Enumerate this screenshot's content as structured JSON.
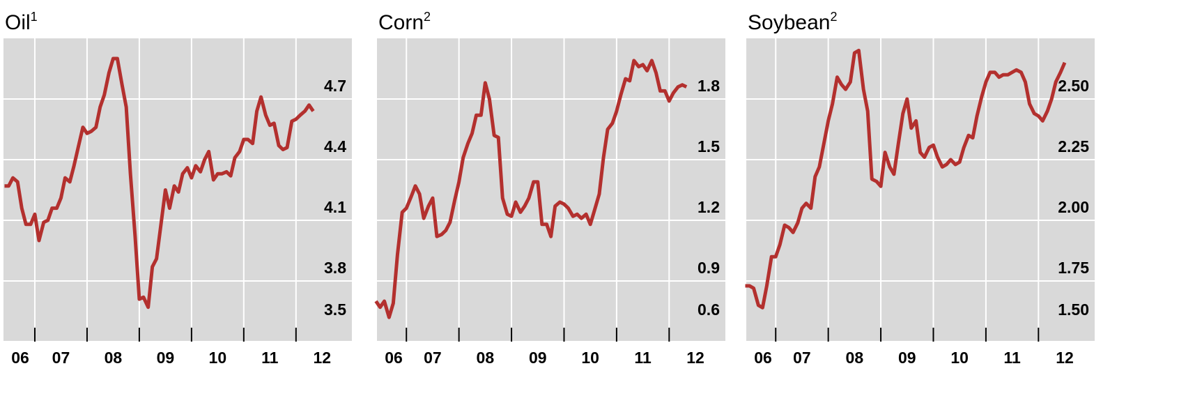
{
  "chart_data": [
    {
      "type": "line",
      "title": "Oil",
      "title_note": "1",
      "color": "#b3302e",
      "xlim": [
        2006.4,
        2013.07
      ],
      "ylim": [
        3.5,
        5.0
      ],
      "xticks": [
        {
          "value": 2006.5,
          "label": "06"
        },
        {
          "value": 2007.5,
          "label": "07"
        },
        {
          "value": 2008.5,
          "label": "08"
        },
        {
          "value": 2009.5,
          "label": "09"
        },
        {
          "value": 2010.5,
          "label": "10"
        },
        {
          "value": 2011.5,
          "label": "11"
        },
        {
          "value": 2012.5,
          "label": "12"
        }
      ],
      "yticks": [
        3.5,
        3.8,
        4.1,
        4.4,
        4.7
      ],
      "grid": true,
      "x": [
        2006.42,
        2006.5,
        2006.58,
        2006.67,
        2006.75,
        2006.83,
        2006.92,
        2007,
        2007.08,
        2007.17,
        2007.25,
        2007.33,
        2007.42,
        2007.5,
        2007.58,
        2007.67,
        2007.75,
        2007.83,
        2007.92,
        2008,
        2008.08,
        2008.17,
        2008.25,
        2008.33,
        2008.42,
        2008.5,
        2008.58,
        2008.67,
        2008.75,
        2008.83,
        2008.92,
        2009,
        2009.08,
        2009.17,
        2009.25,
        2009.33,
        2009.42,
        2009.5,
        2009.58,
        2009.67,
        2009.75,
        2009.83,
        2009.92,
        2010,
        2010.08,
        2010.17,
        2010.25,
        2010.33,
        2010.42,
        2010.5,
        2010.58,
        2010.67,
        2010.75,
        2010.83,
        2010.92,
        2011,
        2011.08,
        2011.17,
        2011.25,
        2011.33,
        2011.42,
        2011.5,
        2011.58,
        2011.67,
        2011.75,
        2011.83,
        2011.92,
        2012,
        2012.08,
        2012.17,
        2012.25,
        2012.33
      ],
      "values": [
        4.27,
        4.27,
        4.31,
        4.29,
        4.16,
        4.08,
        4.08,
        4.13,
        4.0,
        4.09,
        4.1,
        4.16,
        4.16,
        4.21,
        4.31,
        4.29,
        4.37,
        4.46,
        4.56,
        4.53,
        4.54,
        4.56,
        4.66,
        4.72,
        4.83,
        4.9,
        4.9,
        4.77,
        4.66,
        4.33,
        4.02,
        3.71,
        3.72,
        3.67,
        3.87,
        3.91,
        4.09,
        4.25,
        4.16,
        4.27,
        4.24,
        4.33,
        4.36,
        4.31,
        4.37,
        4.34,
        4.4,
        4.44,
        4.3,
        4.33,
        4.33,
        4.34,
        4.32,
        4.41,
        4.44,
        4.5,
        4.5,
        4.48,
        4.64,
        4.71,
        4.62,
        4.57,
        4.58,
        4.47,
        4.45,
        4.46,
        4.59,
        4.6,
        4.62,
        4.64,
        4.67,
        4.64
      ]
    },
    {
      "type": "line",
      "title": "Corn",
      "title_note": "2",
      "color": "#b3302e",
      "xlim": [
        2006.44,
        2013.07
      ],
      "ylim": [
        0.6,
        2.1
      ],
      "xticks": [
        {
          "value": 2006.5,
          "label": "06"
        },
        {
          "value": 2007.5,
          "label": "07"
        },
        {
          "value": 2008.5,
          "label": "08"
        },
        {
          "value": 2009.5,
          "label": "09"
        },
        {
          "value": 2010.5,
          "label": "10"
        },
        {
          "value": 2011.5,
          "label": "11"
        },
        {
          "value": 2012.5,
          "label": "12"
        }
      ],
      "yticks": [
        0.6,
        0.9,
        1.2,
        1.5,
        1.8
      ],
      "grid": true,
      "x": [
        2006.42,
        2006.5,
        2006.58,
        2006.67,
        2006.75,
        2006.83,
        2006.92,
        2007,
        2007.08,
        2007.17,
        2007.25,
        2007.33,
        2007.42,
        2007.5,
        2007.58,
        2007.67,
        2007.75,
        2007.83,
        2007.92,
        2008,
        2008.08,
        2008.17,
        2008.25,
        2008.33,
        2008.42,
        2008.5,
        2008.58,
        2008.67,
        2008.75,
        2008.83,
        2008.92,
        2009,
        2009.08,
        2009.17,
        2009.25,
        2009.33,
        2009.42,
        2009.5,
        2009.58,
        2009.67,
        2009.75,
        2009.83,
        2009.92,
        2010,
        2010.08,
        2010.17,
        2010.25,
        2010.33,
        2010.42,
        2010.5,
        2010.58,
        2010.67,
        2010.75,
        2010.83,
        2010.92,
        2011,
        2011.08,
        2011.17,
        2011.25,
        2011.33,
        2011.42,
        2011.5,
        2011.58,
        2011.67,
        2011.75,
        2011.83,
        2011.92,
        2012,
        2012.08,
        2012.17,
        2012.25,
        2012.33
      ],
      "values": [
        0.8,
        0.77,
        0.8,
        0.72,
        0.79,
        1.03,
        1.24,
        1.26,
        1.31,
        1.37,
        1.33,
        1.21,
        1.27,
        1.31,
        1.12,
        1.13,
        1.15,
        1.19,
        1.3,
        1.39,
        1.51,
        1.58,
        1.63,
        1.72,
        1.72,
        1.88,
        1.8,
        1.62,
        1.61,
        1.31,
        1.23,
        1.22,
        1.29,
        1.24,
        1.27,
        1.31,
        1.39,
        1.39,
        1.18,
        1.18,
        1.12,
        1.27,
        1.29,
        1.28,
        1.26,
        1.22,
        1.23,
        1.21,
        1.23,
        1.18,
        1.25,
        1.33,
        1.51,
        1.65,
        1.68,
        1.74,
        1.82,
        1.9,
        1.89,
        1.99,
        1.96,
        1.97,
        1.94,
        1.99,
        1.93,
        1.84,
        1.84,
        1.79,
        1.83,
        1.86,
        1.87,
        1.86
      ]
    },
    {
      "type": "line",
      "title": "Soybean",
      "title_note": "2",
      "color": "#b3302e",
      "xlim": [
        2006.44,
        2013.07
      ],
      "ylim": [
        1.5,
        2.75
      ],
      "xticks": [
        {
          "value": 2006.5,
          "label": "06"
        },
        {
          "value": 2007.5,
          "label": "07"
        },
        {
          "value": 2008.5,
          "label": "08"
        },
        {
          "value": 2009.5,
          "label": "09"
        },
        {
          "value": 2010.5,
          "label": "10"
        },
        {
          "value": 2011.5,
          "label": "11"
        },
        {
          "value": 2012.5,
          "label": "12"
        }
      ],
      "yticks": [
        {
          "value": 1.5,
          "label": "1.50"
        },
        1.75,
        {
          "value": 2,
          "label": "2.00"
        },
        2.25,
        {
          "value": 2.5,
          "label": "2.50"
        }
      ],
      "grid": true,
      "x": [
        2006.42,
        2006.5,
        2006.58,
        2006.67,
        2006.75,
        2006.83,
        2006.92,
        2007,
        2007.08,
        2007.17,
        2007.25,
        2007.33,
        2007.42,
        2007.5,
        2007.58,
        2007.67,
        2007.75,
        2007.83,
        2007.92,
        2008,
        2008.08,
        2008.17,
        2008.25,
        2008.33,
        2008.42,
        2008.5,
        2008.58,
        2008.67,
        2008.75,
        2008.83,
        2008.92,
        2009,
        2009.08,
        2009.17,
        2009.25,
        2009.33,
        2009.42,
        2009.5,
        2009.58,
        2009.67,
        2009.75,
        2009.83,
        2009.92,
        2010,
        2010.08,
        2010.17,
        2010.25,
        2010.33,
        2010.42,
        2010.5,
        2010.58,
        2010.67,
        2010.75,
        2010.83,
        2010.92,
        2011,
        2011.08,
        2011.17,
        2011.25,
        2011.33,
        2011.42,
        2011.5,
        2011.58,
        2011.67,
        2011.75,
        2011.83,
        2011.92,
        2012,
        2012.08,
        2012.17,
        2012.25,
        2012.33,
        2012.42,
        2012.5
      ],
      "values": [
        1.73,
        1.73,
        1.72,
        1.65,
        1.64,
        1.73,
        1.85,
        1.85,
        1.9,
        1.98,
        1.97,
        1.95,
        1.99,
        2.05,
        2.07,
        2.05,
        2.18,
        2.22,
        2.32,
        2.41,
        2.48,
        2.59,
        2.56,
        2.54,
        2.57,
        2.69,
        2.7,
        2.54,
        2.45,
        2.17,
        2.16,
        2.14,
        2.28,
        2.22,
        2.19,
        2.31,
        2.44,
        2.5,
        2.38,
        2.41,
        2.28,
        2.26,
        2.3,
        2.31,
        2.26,
        2.22,
        2.23,
        2.25,
        2.23,
        2.24,
        2.3,
        2.35,
        2.34,
        2.43,
        2.51,
        2.57,
        2.61,
        2.61,
        2.59,
        2.6,
        2.6,
        2.61,
        2.62,
        2.61,
        2.57,
        2.48,
        2.44,
        2.43,
        2.41,
        2.45,
        2.5,
        2.57,
        2.61,
        2.65
      ]
    }
  ]
}
